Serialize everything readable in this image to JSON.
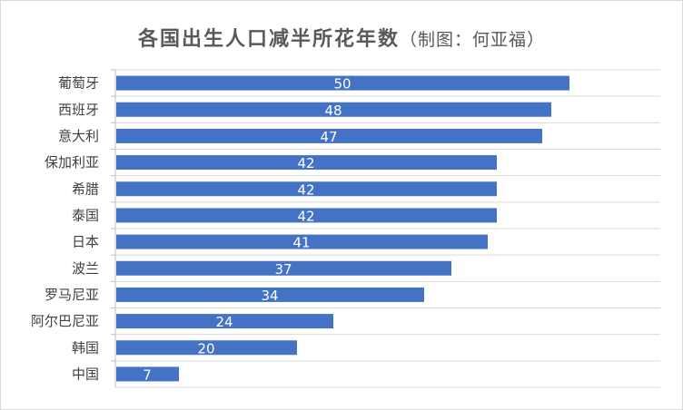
{
  "chart_data": {
    "type": "bar",
    "orientation": "horizontal",
    "title": "各国出生人口减半所花年数",
    "subtitle": "（制图：何亚福）",
    "categories": [
      "葡萄牙",
      "西班牙",
      "意大利",
      "保加利亚",
      "希腊",
      "泰国",
      "日本",
      "波兰",
      "罗马尼亚",
      "阿尔巴尼亚",
      "韩国",
      "中国"
    ],
    "values": [
      50,
      48,
      47,
      42,
      42,
      42,
      41,
      37,
      34,
      24,
      20,
      7
    ],
    "xlim": [
      0,
      60
    ],
    "grid": true,
    "legend": "none",
    "data_labels": true,
    "bar_color": "#4472c4",
    "grid_color": "#d9d9d9",
    "axis_color": "#bfbfbf"
  }
}
